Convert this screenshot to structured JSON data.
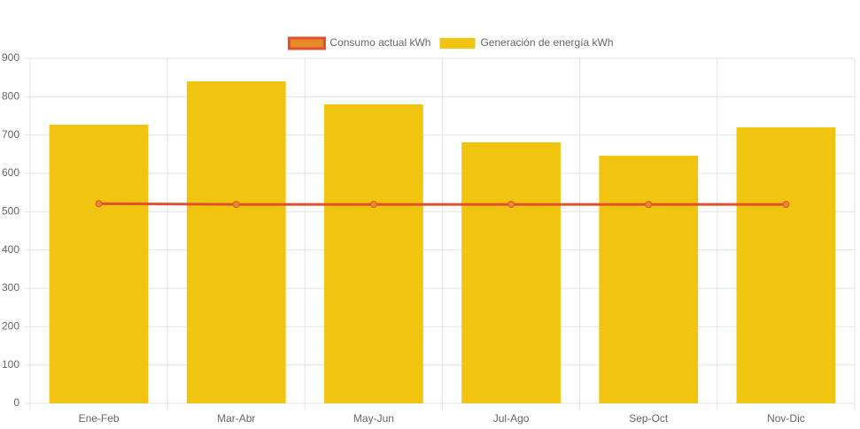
{
  "chart_data": {
    "type": "bar",
    "categories": [
      "Ene-Feb",
      "Mar-Abr",
      "May-Jun",
      "Jul-Ago",
      "Sep-Oct",
      "Nov-Dic"
    ],
    "series": [
      {
        "name": "Consumo actual kWh",
        "type": "line",
        "color": "#e0502f",
        "fill": "#e88a2a",
        "values": [
          521,
          519,
          519,
          519,
          519,
          519
        ]
      },
      {
        "name": "Generación de energía kWh",
        "type": "bar",
        "color": "#f0c40f",
        "values": [
          727,
          840,
          780,
          681,
          646,
          720
        ]
      }
    ],
    "ylim": [
      0,
      900
    ],
    "yticks": [
      0,
      100,
      200,
      300,
      400,
      500,
      600,
      700,
      800,
      900
    ],
    "grid": true,
    "legend": "top"
  }
}
